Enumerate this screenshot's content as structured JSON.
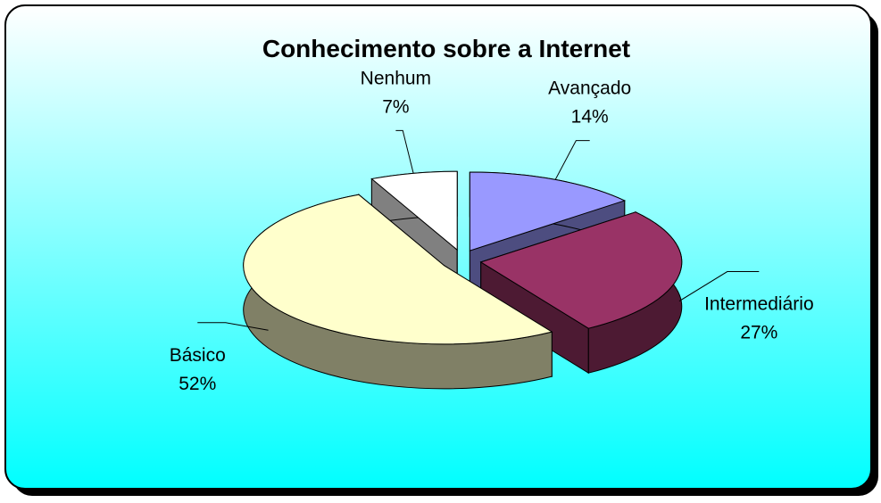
{
  "chart_data": {
    "type": "pie",
    "title": "Conhecimento sobre a Internet",
    "categories": [
      "Avançado",
      "Intermediário",
      "Básico",
      "Nenhum"
    ],
    "values": [
      14,
      27,
      52,
      7
    ],
    "value_labels": [
      "14%",
      "27%",
      "52%",
      "7%"
    ],
    "colors": [
      "#9999ff",
      "#993366",
      "#ffffcc",
      "#ffffff"
    ]
  }
}
